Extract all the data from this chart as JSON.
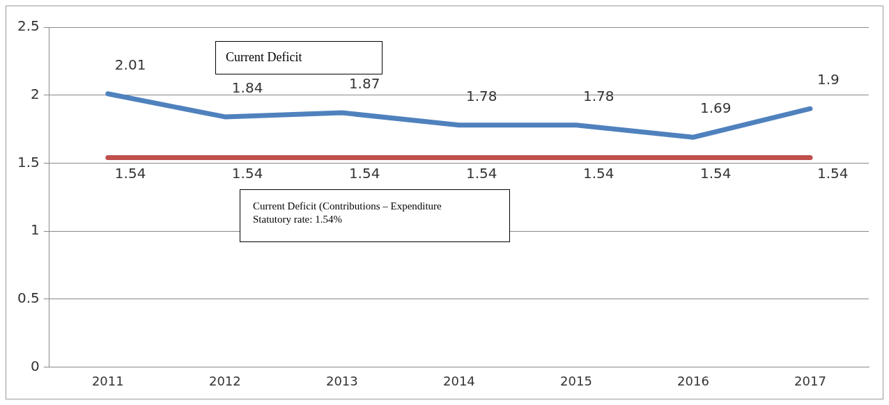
{
  "chart_data": {
    "type": "line",
    "categories": [
      "2011",
      "2012",
      "2013",
      "2014",
      "2015",
      "2016",
      "2017"
    ],
    "series": [
      {
        "color": "#4f81bd",
        "values": [
          2.01,
          1.84,
          1.87,
          1.78,
          1.78,
          1.69,
          1.9
        ]
      },
      {
        "color": "#c0504d",
        "values": [
          1.54,
          1.54,
          1.54,
          1.54,
          1.54,
          1.54,
          1.54
        ]
      }
    ],
    "ylim": [
      0,
      2.5
    ],
    "yticks": [
      0,
      0.5,
      1,
      1.5,
      2,
      2.5
    ],
    "grid": "y",
    "legend": false,
    "data_labels": true,
    "marker": "none",
    "line_style": "solid",
    "annotations": [
      "Current Deficit",
      "Current Deficit (Contributions – Expenditure\nStatutory rate:  1.54%"
    ]
  }
}
